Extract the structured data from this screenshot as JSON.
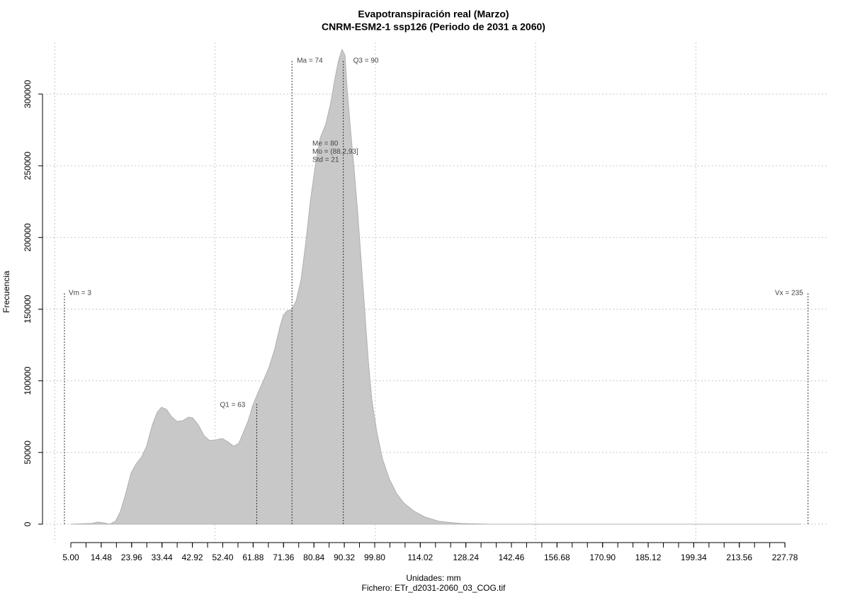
{
  "chart_data": {
    "type": "area",
    "title": "Evapotranspiración real (Marzo)",
    "subtitle": "CNRM-ESM2-1 ssp126 (Periodo de 2031 a 2060)",
    "x_label": "Unidades: mm",
    "caption": "Fichero: ETr_d2031-2060_03_COG.tif",
    "y_label": "Frecuencia",
    "color": "#c8c8c8",
    "x": [
      5.0,
      11.63,
      13.4,
      14.94,
      17.15,
      18.92,
      20.47,
      22.24,
      23.78,
      25.33,
      27.1,
      28.64,
      30.41,
      31.96,
      33.29,
      34.83,
      36.38,
      38.15,
      39.92,
      41.69,
      43.01,
      44.78,
      46.55,
      48.31,
      50.3,
      52.29,
      54.06,
      55.83,
      57.38,
      58.7,
      60.25,
      61.8,
      63.34,
      65.11,
      66.88,
      68.65,
      70.19,
      71.3,
      72.4,
      73.95,
      75.28,
      76.82,
      78.37,
      79.7,
      81.24,
      82.79,
      84.56,
      86.1,
      87.43,
      88.54,
      89.64,
      90.52,
      91.19,
      92.29,
      93.4,
      94.5,
      95.61,
      96.71,
      97.82,
      98.92,
      100.47,
      102.24,
      104.45,
      106.66,
      108.87,
      112.18,
      115.5,
      119.92,
      126.55,
      135.39,
      232.62
    ],
    "values": [
      0,
      494,
      1483,
      988,
      0,
      1977,
      8896,
      22240,
      35585,
      42010,
      46952,
      54366,
      69192,
      78088,
      81547,
      80065,
      75122,
      71663,
      72157,
      74628,
      74134,
      69192,
      61779,
      58320,
      58814,
      59802,
      57331,
      54366,
      56343,
      63261,
      71663,
      83029,
      91431,
      100326,
      109716,
      122565,
      137391,
      145793,
      148758,
      149746,
      155677,
      170503,
      197684,
      224865,
      249575,
      269343,
      279227,
      294053,
      311350,
      323705,
      331118,
      327164,
      303935,
      274281,
      247099,
      217446,
      182852,
      148264,
      113666,
      86485,
      64245,
      45464,
      31132,
      21248,
      14823,
      8896,
      4942,
      1977,
      494,
      0,
      0
    ],
    "xlim": [
      -3.84,
      241.46
    ],
    "ylim": [
      -12850,
      336000
    ],
    "xticks": [
      {
        "value": 5,
        "label": "5.00"
      },
      {
        "value": 14.48,
        "label": "14.48"
      },
      {
        "value": 23.96,
        "label": "23.96"
      },
      {
        "value": 33.44,
        "label": "33.44"
      },
      {
        "value": 42.92,
        "label": "42.92"
      },
      {
        "value": 52.4,
        "label": "52.40"
      },
      {
        "value": 61.88,
        "label": "61.88"
      },
      {
        "value": 71.36,
        "label": "71.36"
      },
      {
        "value": 80.84,
        "label": "80.84"
      },
      {
        "value": 90.32,
        "label": "90.32"
      },
      {
        "value": 99.8,
        "label": "99.80"
      },
      {
        "value": 114.02,
        "label": "114.02"
      },
      {
        "value": 128.24,
        "label": "128.24"
      },
      {
        "value": 142.46,
        "label": "142.46"
      },
      {
        "value": 156.68,
        "label": "156.68"
      },
      {
        "value": 170.9,
        "label": "170.90"
      },
      {
        "value": 185.12,
        "label": "185.12"
      },
      {
        "value": 199.34,
        "label": "199.34"
      },
      {
        "value": 213.56,
        "label": "213.56"
      },
      {
        "value": 227.78,
        "label": "227.78"
      }
    ],
    "xminorticks": [
      5,
      9.74,
      14.48,
      19.22,
      23.96,
      28.7,
      33.44,
      38.18,
      42.92,
      47.66,
      52.4,
      57.14,
      61.88,
      66.62,
      71.36,
      76.1,
      80.84,
      85.58,
      90.32,
      95.06,
      99.8,
      104.54,
      109.28,
      114.02,
      118.76,
      123.5,
      128.24,
      132.98,
      137.72,
      142.46,
      147.2,
      151.94,
      156.68,
      161.42,
      166.16,
      170.9,
      175.64,
      180.38,
      185.12,
      189.86,
      194.6,
      199.34,
      204.08,
      208.82,
      213.56,
      218.3,
      223.04,
      227.78
    ],
    "xgrid": [
      0,
      50,
      100,
      150,
      200
    ],
    "yticks": [
      0,
      50000,
      100000,
      150000,
      200000,
      250000,
      300000
    ],
    "grid": true,
    "statistics": [
      {
        "label": "Vm = 3",
        "value": 3
      },
      {
        "label": "Q1 = 63",
        "value": 63
      },
      {
        "label": "Ma = 74",
        "value": 74
      },
      {
        "label": "Q3 = 90",
        "value": 90
      },
      {
        "label": "Vx = 235",
        "value": 235
      }
    ],
    "annotation_block": [
      "Me = 80",
      "Mo = (88.2,93]",
      "Std = 21"
    ]
  }
}
